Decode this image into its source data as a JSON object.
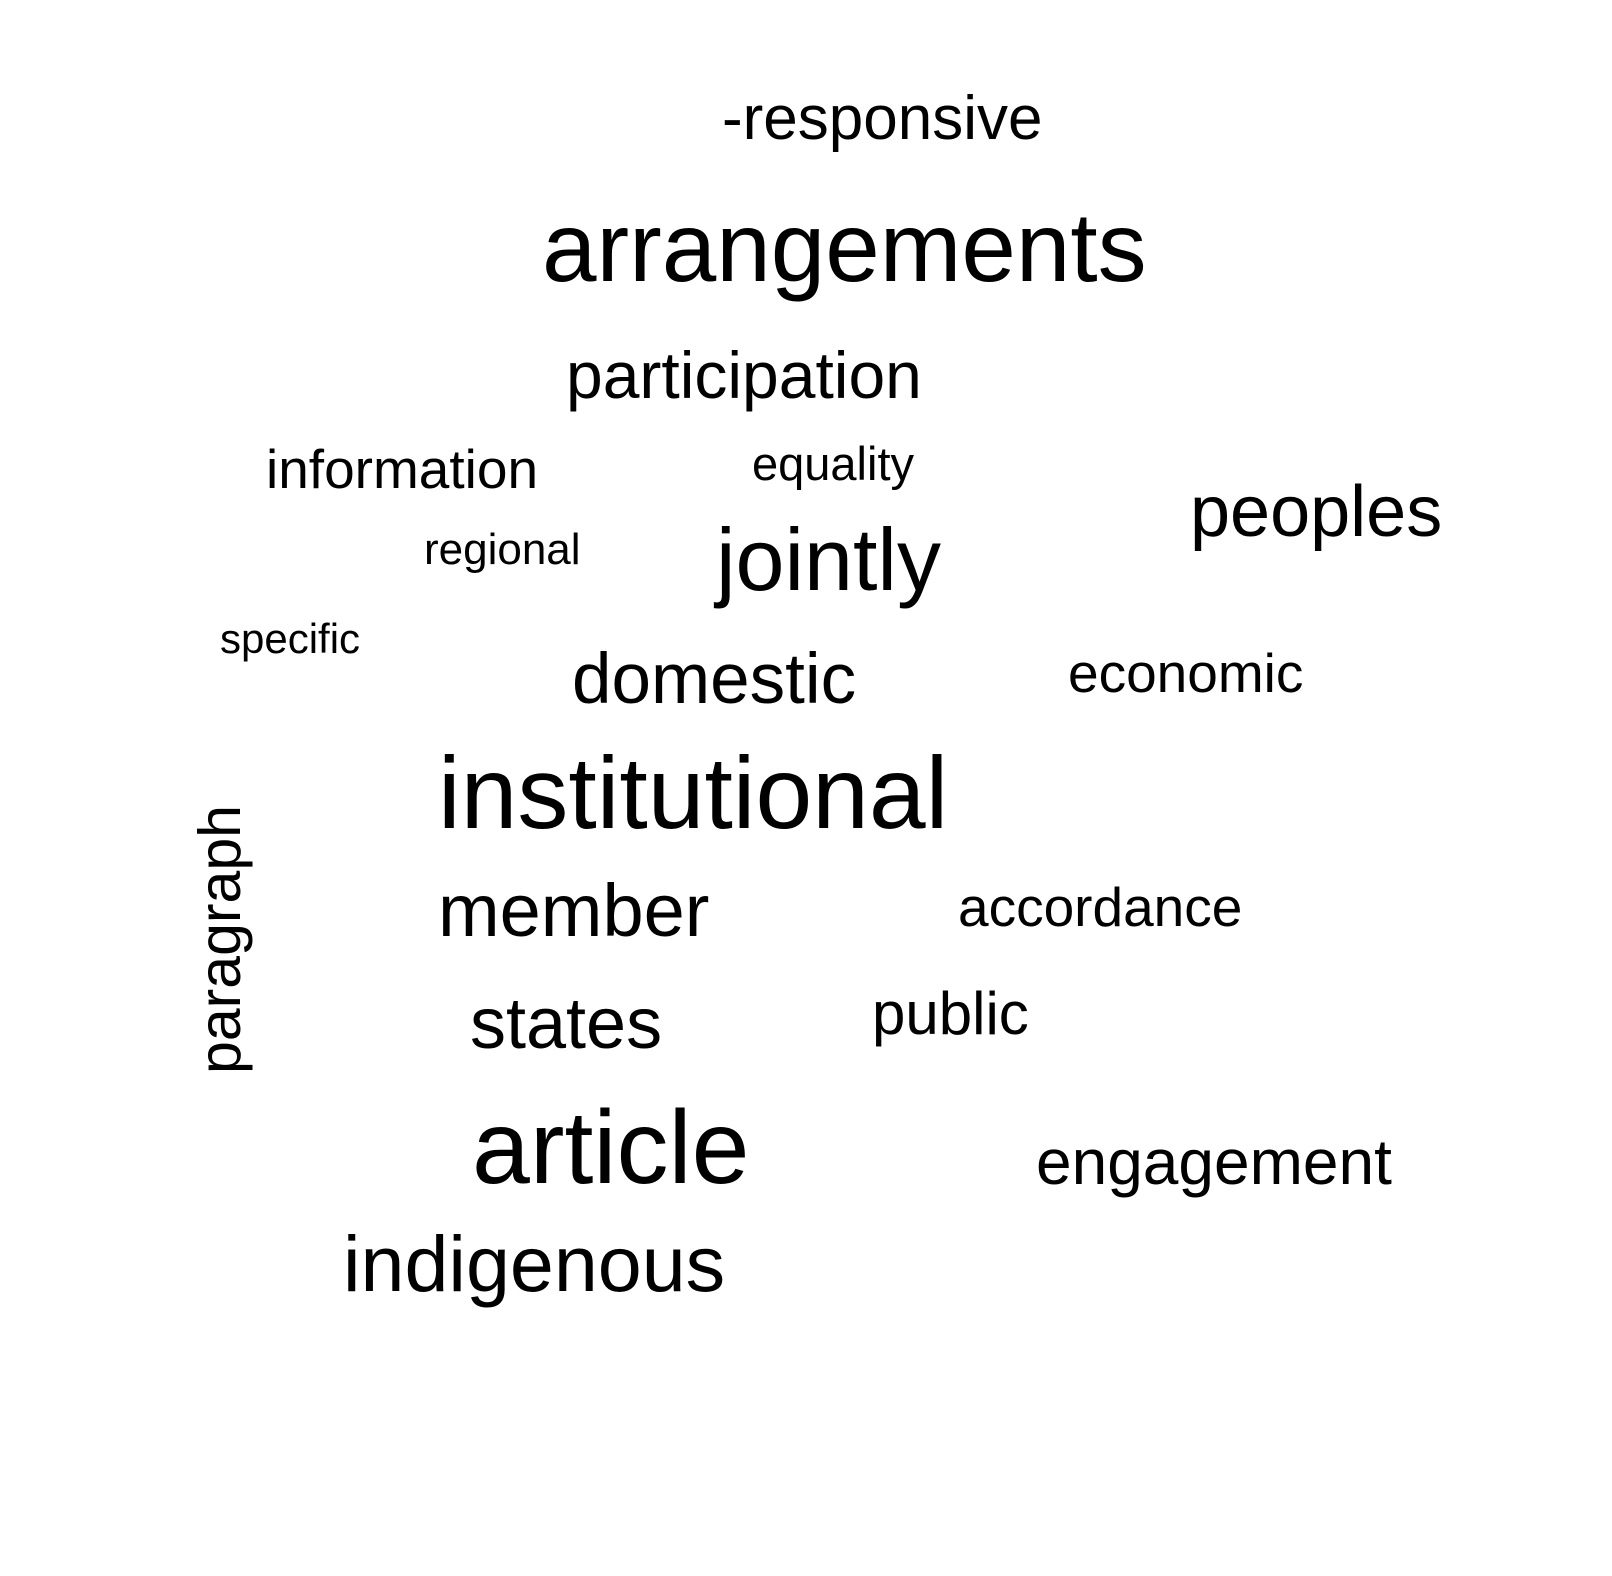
{
  "word_cloud": {
    "words": {
      "responsive": "-responsive",
      "arrangements": "arrangements",
      "participation": "participation",
      "information": "information",
      "equality": "equality",
      "peoples": "peoples",
      "regional": "regional",
      "jointly": "jointly",
      "specific": "specific",
      "domestic": "domestic",
      "economic": "economic",
      "institutional": "institutional",
      "paragraph": "paragraph",
      "member": "member",
      "accordance": "accordance",
      "states": "states",
      "public": "public",
      "article": "article",
      "engagement": "engagement",
      "indigenous": "indigenous"
    },
    "text_color": "#000000",
    "background_color": "#ffffff"
  }
}
